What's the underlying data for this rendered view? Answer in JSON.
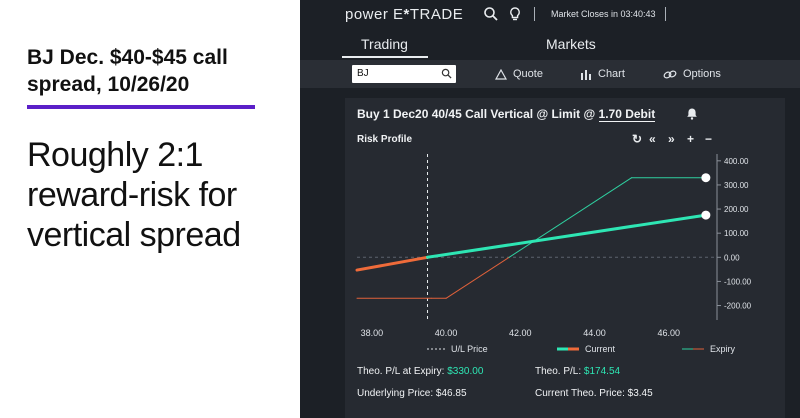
{
  "left": {
    "headline": "BJ Dec. $40-$45 call spread, 10/26/20",
    "subhead": "Roughly 2:1 reward-risk for vertical spread"
  },
  "app": {
    "logo_pre": "power E",
    "logo_star": "*",
    "logo_post": "TRADE",
    "market_status": "Market Closes in 03:40:43",
    "tabs": [
      {
        "label": "Trading",
        "active": true
      },
      {
        "label": "Markets",
        "active": false
      }
    ],
    "toolbar": {
      "search_value": "BJ",
      "quote_label": "Quote",
      "chart_label": "Chart",
      "options_label": "Options"
    },
    "order": {
      "title_prefix": "Buy 1 Dec20 40/45 Call Vertical @ Limit  @ ",
      "debit": "1.70 Debit",
      "risk_profile_label": "Risk Profile",
      "controls": [
        "↻",
        "«",
        "»",
        "+",
        "−"
      ]
    }
  },
  "colors": {
    "current": "#2ee6b4",
    "current_below": "#ef6b3a",
    "expiry": "#2ed0a0",
    "expiry_below": "#e0613a",
    "purple_rule": "#5b1fc8"
  },
  "chart_data": {
    "type": "line",
    "x_ticks": [
      "38.00",
      "40.00",
      "42.00",
      "44.00",
      "46.00"
    ],
    "y_ticks": [
      "400.00",
      "300.00",
      "200.00",
      "100.00",
      "0.00",
      "-100.00",
      "-200.00"
    ],
    "xlim": [
      37.6,
      47.3
    ],
    "ylim": [
      -260,
      420
    ],
    "underlying_price_line": 39.5,
    "series": [
      {
        "name": "Current",
        "x": [
          37.6,
          39.5,
          47.0
        ],
        "y": [
          -53,
          0,
          175
        ]
      },
      {
        "name": "Expiry",
        "x": [
          37.6,
          39.6,
          40.0,
          45.0,
          47.0
        ],
        "y": [
          -170,
          -170,
          -170,
          330,
          330
        ]
      }
    ],
    "legend": [
      "U/L Price",
      "Current",
      "Expiry"
    ]
  },
  "stats": {
    "pl_expiry_label": "Theo. P/L at Expiry:",
    "pl_expiry_value": "$330.00",
    "pl_label": "Theo. P/L:",
    "pl_value": "$174.54",
    "underlying_label": "Underlying Price: $46.85",
    "current_theo_label": "Current Theo. Price: $3.45"
  }
}
